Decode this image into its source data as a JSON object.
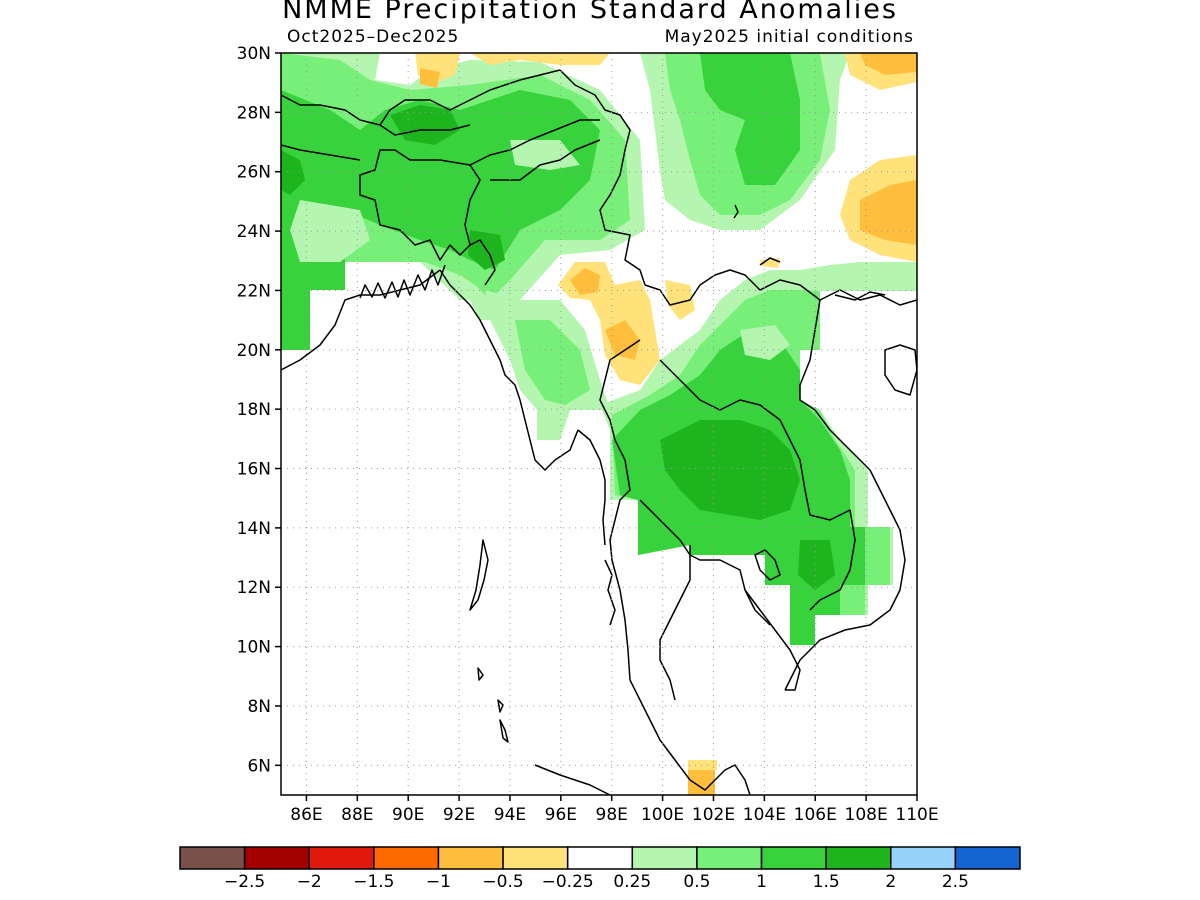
{
  "map": {
    "title": "NMME Precipitation Standard Anomalies",
    "period": "Oct2025–Dec2025",
    "initial_conditions": "May2025 initial conditions",
    "lat_labels": [
      "30N",
      "28N",
      "26N",
      "24N",
      "22N",
      "20N",
      "18N",
      "16N",
      "14N",
      "12N",
      "10N",
      "8N",
      "6N"
    ],
    "lon_labels": [
      "86E",
      "88E",
      "90E",
      "92E",
      "94E",
      "96E",
      "98E",
      "100E",
      "102E",
      "104E",
      "106E",
      "108E",
      "110E"
    ],
    "lat_values": [
      30,
      28,
      26,
      24,
      22,
      20,
      18,
      16,
      14,
      12,
      10,
      8,
      6
    ],
    "lon_values": [
      86,
      88,
      90,
      92,
      94,
      96,
      98,
      100,
      102,
      104,
      106,
      108,
      110
    ],
    "extent": {
      "lon_min": 85,
      "lon_max": 110,
      "lat_min": 5,
      "lat_max": 30
    }
  },
  "colorbar": {
    "colors": [
      "#7a5148",
      "#a40000",
      "#e0190c",
      "#ff6a00",
      "#ffbe3c",
      "#ffe27a",
      "#ffffff",
      "#b4f5b0",
      "#78ef78",
      "#37d23c",
      "#1eb41e",
      "#96d2fa",
      "#1464d2"
    ],
    "labels": [
      "−2.5",
      "−2",
      "−1.5",
      "−1",
      "−0.5",
      "−0.25",
      "0.25",
      "0.5",
      "1",
      "1.5",
      "2",
      "2.5"
    ]
  },
  "palette": {
    "light_green": "#b4f5b0",
    "green": "#78ef78",
    "mid_green": "#37d23c",
    "dark_green": "#1eb41e",
    "light_yellow": "#ffe27a",
    "orange": "#ffbe3c"
  }
}
